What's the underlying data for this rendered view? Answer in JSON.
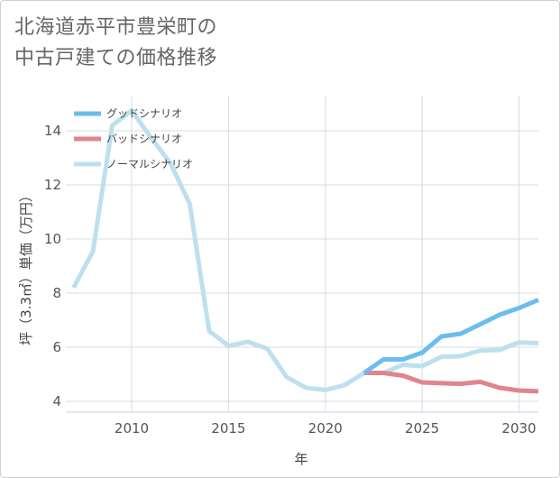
{
  "title": {
    "line1": "北海道赤平市豊栄町の",
    "line2": "中古戸建ての価格推移"
  },
  "chart_data": {
    "type": "line",
    "xlabel": "年",
    "ylabel": "坪（3.3㎡）単価（万円）",
    "xlim": [
      2006.6,
      2031
    ],
    "ylim": [
      3.6,
      15.3
    ],
    "x_ticks": [
      2010,
      2015,
      2020,
      2025,
      2030
    ],
    "y_ticks": [
      4,
      6,
      8,
      10,
      12,
      14
    ],
    "grid": true,
    "legend_position": "top-left",
    "series": [
      {
        "name": "グッドシナリオ",
        "color": "#6bbdee",
        "x": [
          2022,
          2023,
          2024,
          2025,
          2026,
          2027,
          2028,
          2029,
          2030,
          2031
        ],
        "y": [
          5.05,
          5.55,
          5.55,
          5.8,
          6.4,
          6.5,
          6.85,
          7.2,
          7.45,
          7.75
        ]
      },
      {
        "name": "バッドシナリオ",
        "color": "#e0848e",
        "x": [
          2022,
          2023,
          2024,
          2025,
          2026,
          2027,
          2028,
          2029,
          2030,
          2031
        ],
        "y": [
          5.05,
          5.05,
          4.95,
          4.7,
          4.67,
          4.65,
          4.72,
          4.5,
          4.4,
          4.37
        ]
      },
      {
        "name": "ノーマルシナリオ",
        "color": "#bde0ee",
        "x": [
          2007,
          2008,
          2009,
          2010,
          2011,
          2012,
          2013,
          2014,
          2015,
          2016,
          2017,
          2018,
          2019,
          2020,
          2021,
          2022,
          2023,
          2024,
          2025,
          2026,
          2027,
          2028,
          2029,
          2030,
          2031
        ],
        "y": [
          8.2,
          9.55,
          14.2,
          14.75,
          13.75,
          12.8,
          11.3,
          6.6,
          6.05,
          6.2,
          5.95,
          4.9,
          4.5,
          4.42,
          4.6,
          5.05,
          5.05,
          5.35,
          5.3,
          5.65,
          5.67,
          5.88,
          5.9,
          6.18,
          6.15
        ]
      }
    ]
  }
}
